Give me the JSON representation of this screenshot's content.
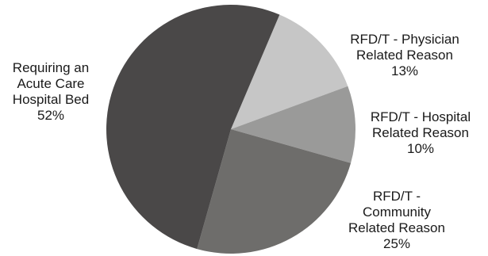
{
  "chart_data": {
    "type": "pie",
    "slices": [
      {
        "label": [
          "RFD/T - Physician",
          "Related Reason"
        ],
        "value": 13,
        "value_text": "13%",
        "color": "#c6c6c6"
      },
      {
        "label": [
          "RFD/T - Hospital",
          "Related Reason"
        ],
        "value": 10,
        "value_text": "10%",
        "color": "#9a9a99"
      },
      {
        "label": [
          "RFD/T -",
          "Community",
          "Related Reason"
        ],
        "value": 25,
        "value_text": "25%",
        "color": "#6e6d6b"
      },
      {
        "label": [
          "Requiring an",
          "Acute Care",
          "Hospital Bed"
        ],
        "value": 52,
        "value_text": "52%",
        "color": "#4a4848"
      }
    ]
  }
}
